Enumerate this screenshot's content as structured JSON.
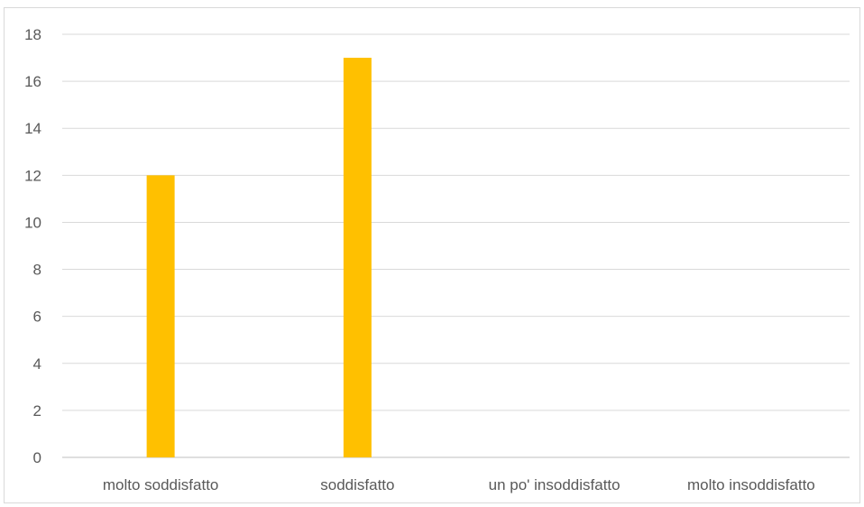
{
  "chart_data": {
    "type": "bar",
    "title": "",
    "xlabel": "",
    "ylabel": "",
    "categories": [
      "molto soddisfatto",
      "soddisfatto",
      "un po' insoddisfatto",
      "molto insoddisfatto"
    ],
    "series": [
      {
        "values": [
          12,
          17,
          0,
          0
        ]
      }
    ],
    "ylim": [
      0,
      18
    ],
    "yticks": [
      "0",
      "2",
      "4",
      "6",
      "8",
      "10",
      "12",
      "14",
      "16",
      "18"
    ],
    "grid": true,
    "legend": "none",
    "bar_color": "#FFC000",
    "grid_color": "#d9d9d9",
    "axis_color": "#bfbfbf",
    "text_color": "#595959"
  }
}
